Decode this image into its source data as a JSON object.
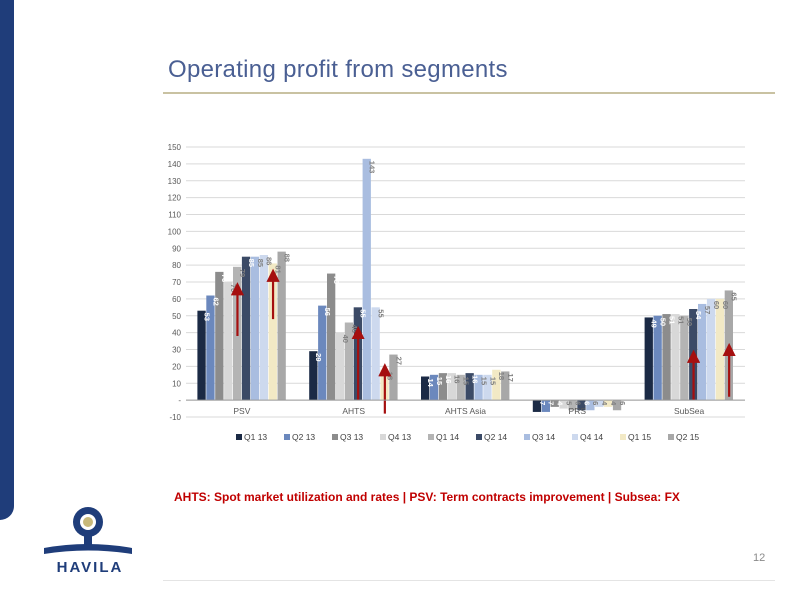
{
  "page": {
    "title": "Operating profit from segments",
    "caption": "AHTS: Spot market utilization and rates | PSV: Term contracts improvement | Subsea: FX",
    "page_number": "12",
    "logo_text": "HAVILA"
  },
  "colors": {
    "title": "#4a5f93",
    "caption": "#c00000",
    "brand_blue": "#1f3d7a",
    "arrow": "#a50f0f"
  },
  "chart_data": {
    "type": "bar",
    "title": "",
    "xlabel": "",
    "ylabel": "",
    "ylim": [
      -10,
      150
    ],
    "yticks": [
      -10,
      0,
      10,
      20,
      30,
      40,
      50,
      60,
      70,
      80,
      90,
      100,
      110,
      120,
      130,
      140,
      150
    ],
    "ytick_labels": [
      "-10",
      "-",
      "10",
      "20",
      "30",
      "40",
      "50",
      "60",
      "70",
      "80",
      "90",
      "100",
      "110",
      "120",
      "130",
      "140",
      "150"
    ],
    "grid": true,
    "legend_position": "bottom",
    "categories": [
      "PSV",
      "AHTS",
      "AHTS Asia",
      "PRS",
      "SubSea"
    ],
    "series": [
      {
        "name": "Q1 13",
        "color": "#1b2a45",
        "values": [
          53,
          29,
          14,
          -7,
          49
        ]
      },
      {
        "name": "Q2 13",
        "color": "#6b88bd",
        "values": [
          62,
          56,
          15,
          -7,
          50
        ]
      },
      {
        "name": "Q3 13",
        "color": "#8c8c8c",
        "values": [
          76,
          75,
          16,
          -4,
          51
        ]
      },
      {
        "name": "Q4 13",
        "color": "#d8d8d8",
        "values": [
          70,
          40,
          16,
          -5,
          51
        ]
      },
      {
        "name": "Q1 14",
        "color": "#b4b4b4",
        "values": [
          79,
          46,
          15,
          -6,
          50
        ]
      },
      {
        "name": "Q2 14",
        "color": "#3b4a66",
        "values": [
          85,
          55,
          16,
          -6,
          54
        ]
      },
      {
        "name": "Q3 14",
        "color": "#a9bde0",
        "values": [
          85,
          143,
          15,
          -6,
          57
        ]
      },
      {
        "name": "Q4 14",
        "color": "#cdd9ee",
        "values": [
          86,
          55,
          15,
          -4,
          60
        ]
      },
      {
        "name": "Q1 15",
        "color": "#f2e9c5",
        "values": [
          81,
          18,
          18,
          -4,
          60
        ]
      },
      {
        "name": "Q2 15",
        "color": "#a8a8a8",
        "values": [
          88,
          27,
          17,
          -6,
          65
        ]
      }
    ],
    "annotations": [
      {
        "type": "arrow-up",
        "category": "PSV",
        "series": "Q1 14",
        "from": 38,
        "to": 66
      },
      {
        "type": "arrow-up",
        "category": "PSV",
        "series": "Q1 15",
        "from": 48,
        "to": 74
      },
      {
        "type": "arrow-up",
        "category": "AHTS",
        "series": "Q2 14",
        "from": 0,
        "to": 40
      },
      {
        "type": "arrow-up",
        "category": "AHTS",
        "series": "Q1 15",
        "from": -8,
        "to": 18
      },
      {
        "type": "arrow-up",
        "category": "SubSea",
        "series": "Q2 14",
        "from": 0,
        "to": 26
      },
      {
        "type": "arrow-up",
        "category": "SubSea",
        "series": "Q2 15",
        "from": 2,
        "to": 30
      }
    ]
  }
}
